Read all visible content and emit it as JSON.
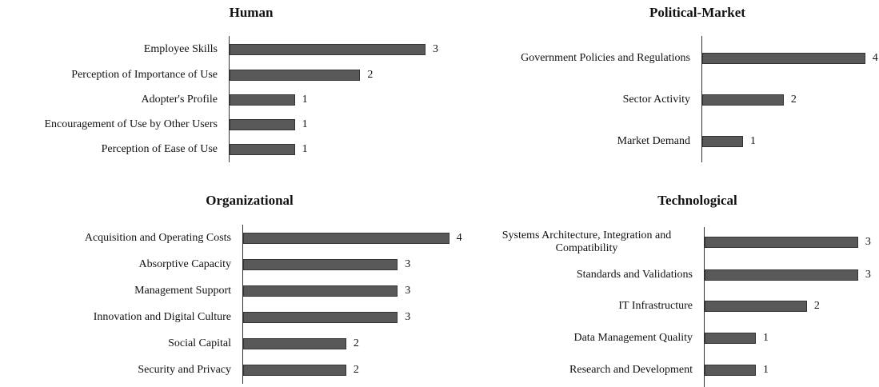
{
  "chart_data": [
    {
      "type": "bar",
      "title": "Human",
      "color": "#595959",
      "xlim": [
        0,
        3.6
      ],
      "categories": [
        "Employee Skills",
        "Perception of Importance of Use",
        "Adopter's Profile",
        "Encouragement of Use by Other Users",
        "Perception of Ease of Use"
      ],
      "values": [
        3,
        2,
        1,
        1,
        1
      ]
    },
    {
      "type": "bar",
      "title": "Political-Market",
      "color": "#595959",
      "xlim": [
        0,
        4.2
      ],
      "categories": [
        "Government Policies and Regulations",
        "Sector Activity",
        "Market Demand"
      ],
      "values": [
        4,
        2,
        1
      ]
    },
    {
      "type": "bar",
      "title": "Organizational",
      "color": "#595959",
      "xlim": [
        0,
        4.3
      ],
      "categories": [
        "Acquisition and Operating Costs",
        "Absorptive Capacity",
        "Management Support",
        "Innovation and Digital Culture",
        "Social Capital",
        "Security and Privacy"
      ],
      "values": [
        4,
        3,
        3,
        3,
        2,
        2
      ]
    },
    {
      "type": "bar",
      "title": "Technological",
      "color": "#595959",
      "xlim": [
        0,
        3.3
      ],
      "categories": [
        "Systems Architecture, Integration and Compatibility",
        "Standards and Validations",
        "IT Infrastructure",
        "Data Management Quality",
        "Research and Development"
      ],
      "values": [
        3,
        3,
        2,
        1,
        1
      ]
    }
  ]
}
